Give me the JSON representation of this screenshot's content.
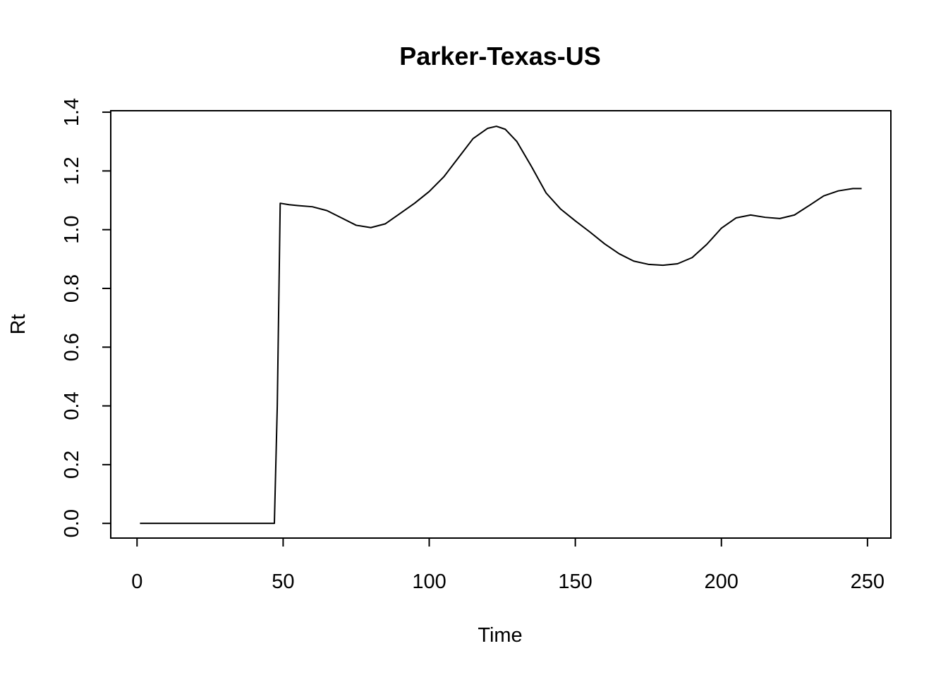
{
  "chart_data": {
    "type": "line",
    "title": "Parker-Texas-US",
    "xlabel": "Time",
    "ylabel": "Rt",
    "xlim": [
      -9,
      258
    ],
    "ylim": [
      -0.05,
      1.405
    ],
    "x_ticks": [
      0,
      50,
      100,
      150,
      200,
      250
    ],
    "x_tick_labels": [
      "0",
      "50",
      "100",
      "150",
      "200",
      "250"
    ],
    "y_ticks": [
      0.0,
      0.2,
      0.4,
      0.6,
      0.8,
      1.0,
      1.2,
      1.4
    ],
    "y_tick_labels": [
      "0.0",
      "0.2",
      "0.4",
      "0.6",
      "0.8",
      "1.0",
      "1.2",
      "1.4"
    ],
    "grid": false,
    "legend": "none",
    "line_color": "#000000",
    "series": [
      {
        "x": [
          1,
          5,
          10,
          20,
          30,
          40,
          47,
          48,
          49,
          52,
          55,
          60,
          65,
          70,
          75,
          80,
          85,
          90,
          95,
          100,
          105,
          110,
          115,
          120,
          123,
          126,
          130,
          135,
          140,
          145,
          150,
          155,
          160,
          165,
          170,
          175,
          180,
          185,
          190,
          195,
          200,
          205,
          210,
          215,
          220,
          225,
          230,
          235,
          240,
          245,
          248
        ],
        "y": [
          0,
          0,
          0,
          0,
          0,
          0,
          0,
          0.4,
          1.09,
          1.085,
          1.082,
          1.078,
          1.065,
          1.04,
          1.015,
          1.007,
          1.02,
          1.055,
          1.09,
          1.13,
          1.18,
          1.245,
          1.31,
          1.345,
          1.352,
          1.342,
          1.3,
          1.215,
          1.125,
          1.07,
          1.03,
          0.992,
          0.952,
          0.918,
          0.893,
          0.882,
          0.879,
          0.884,
          0.905,
          0.95,
          1.005,
          1.04,
          1.05,
          1.042,
          1.038,
          1.05,
          1.082,
          1.115,
          1.132,
          1.14,
          1.14
        ]
      }
    ]
  }
}
